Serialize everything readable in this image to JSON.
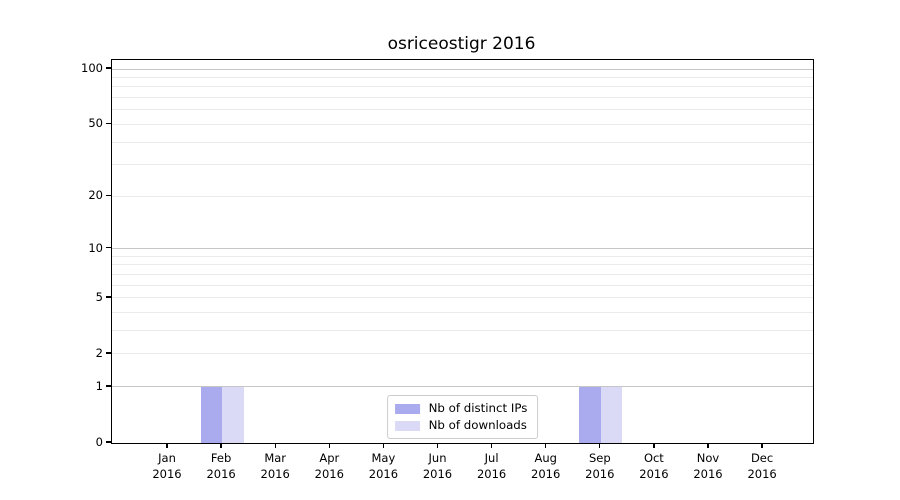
{
  "chart_data": {
    "type": "bar",
    "title": "osriceostigr 2016",
    "categories": [
      "Jan",
      "Feb",
      "Mar",
      "Apr",
      "May",
      "Jun",
      "Jul",
      "Aug",
      "Sep",
      "Oct",
      "Nov",
      "Dec"
    ],
    "x_year_label": "2016",
    "series": [
      {
        "name": "Nb of distinct IPs",
        "color": "#aaaaee",
        "values": [
          0,
          1,
          0,
          0,
          0,
          0,
          0,
          0,
          1,
          0,
          0,
          0
        ]
      },
      {
        "name": "Nb of downloads",
        "color": "#dadaf6",
        "values": [
          0,
          1,
          0,
          0,
          0,
          0,
          0,
          0,
          1,
          0,
          0,
          0
        ]
      }
    ],
    "yscale": "log1p",
    "ylim": [
      0,
      112
    ],
    "yticks": [
      0,
      1,
      2,
      5,
      10,
      20,
      50,
      100
    ],
    "major_gridlines": [
      1,
      10,
      100
    ],
    "minor_gridlines": [
      2,
      3,
      4,
      5,
      6,
      7,
      8,
      9,
      20,
      30,
      40,
      50,
      60,
      70,
      80,
      90
    ],
    "legend": {
      "position": "lower center"
    },
    "colors": {
      "major_grid": "#c6c6c6",
      "minor_grid": "#eaeaea",
      "axis": "#000000",
      "background": "#ffffff"
    }
  }
}
